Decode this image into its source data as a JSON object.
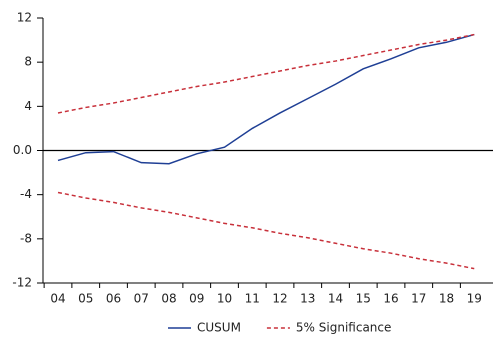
{
  "chart_data": {
    "type": "line",
    "categories": [
      "04",
      "05",
      "06",
      "07",
      "08",
      "09",
      "10",
      "11",
      "12",
      "13",
      "14",
      "15",
      "16",
      "17",
      "18",
      "19"
    ],
    "ylim": [
      -12,
      12
    ],
    "yticks": [
      12,
      8,
      4,
      {
        "value": 0,
        "label": "0.0"
      },
      -4,
      -8,
      -12
    ],
    "series": [
      {
        "name": "CUSUM",
        "color": "#1f3f95",
        "style": "solid",
        "values": [
          -0.9,
          -0.2,
          -0.1,
          -1.1,
          -1.2,
          -0.3,
          0.3,
          2.0,
          3.4,
          4.7,
          6.0,
          7.4,
          8.3,
          9.3,
          9.8,
          10.5
        ]
      },
      {
        "name": "5% Significance",
        "color": "#c8303a",
        "style": "dashed",
        "values": [
          3.4,
          3.9,
          4.3,
          4.8,
          5.3,
          5.8,
          6.2,
          6.7,
          7.2,
          7.7,
          8.1,
          8.6,
          9.1,
          9.6,
          10.0,
          10.5
        ]
      },
      {
        "color": "#c8303a",
        "style": "dashed",
        "values": [
          -3.8,
          -4.3,
          -4.7,
          -5.2,
          -5.6,
          -6.1,
          -6.6,
          -7.0,
          -7.5,
          -7.9,
          -8.4,
          -8.9,
          -9.3,
          -9.8,
          -10.2,
          -10.7
        ]
      }
    ]
  }
}
